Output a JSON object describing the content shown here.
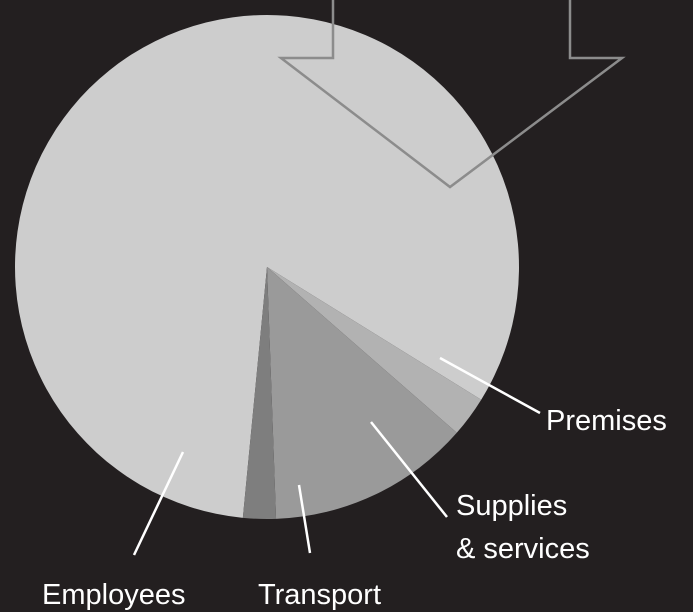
{
  "chart_data": {
    "type": "pie",
    "title": "",
    "slices": [
      {
        "label": "Employees",
        "value": 82.3,
        "color": "#cdcdcd"
      },
      {
        "label": "Premises",
        "value": 2.6,
        "color": "#b2b2b2"
      },
      {
        "label": "Supplies & services",
        "value": 13.0,
        "color": "#9a9a9a"
      },
      {
        "label": "Transport",
        "value": 2.1,
        "color": "#7e7e7e"
      }
    ],
    "labels": {
      "employees": "Employees",
      "premises": "Premises",
      "supplies_line1": "Supplies",
      "supplies_line2": "& services",
      "transport": "Transport"
    },
    "annotation": {
      "type": "arrow",
      "color": "#8c8c8c",
      "direction": "down"
    }
  }
}
